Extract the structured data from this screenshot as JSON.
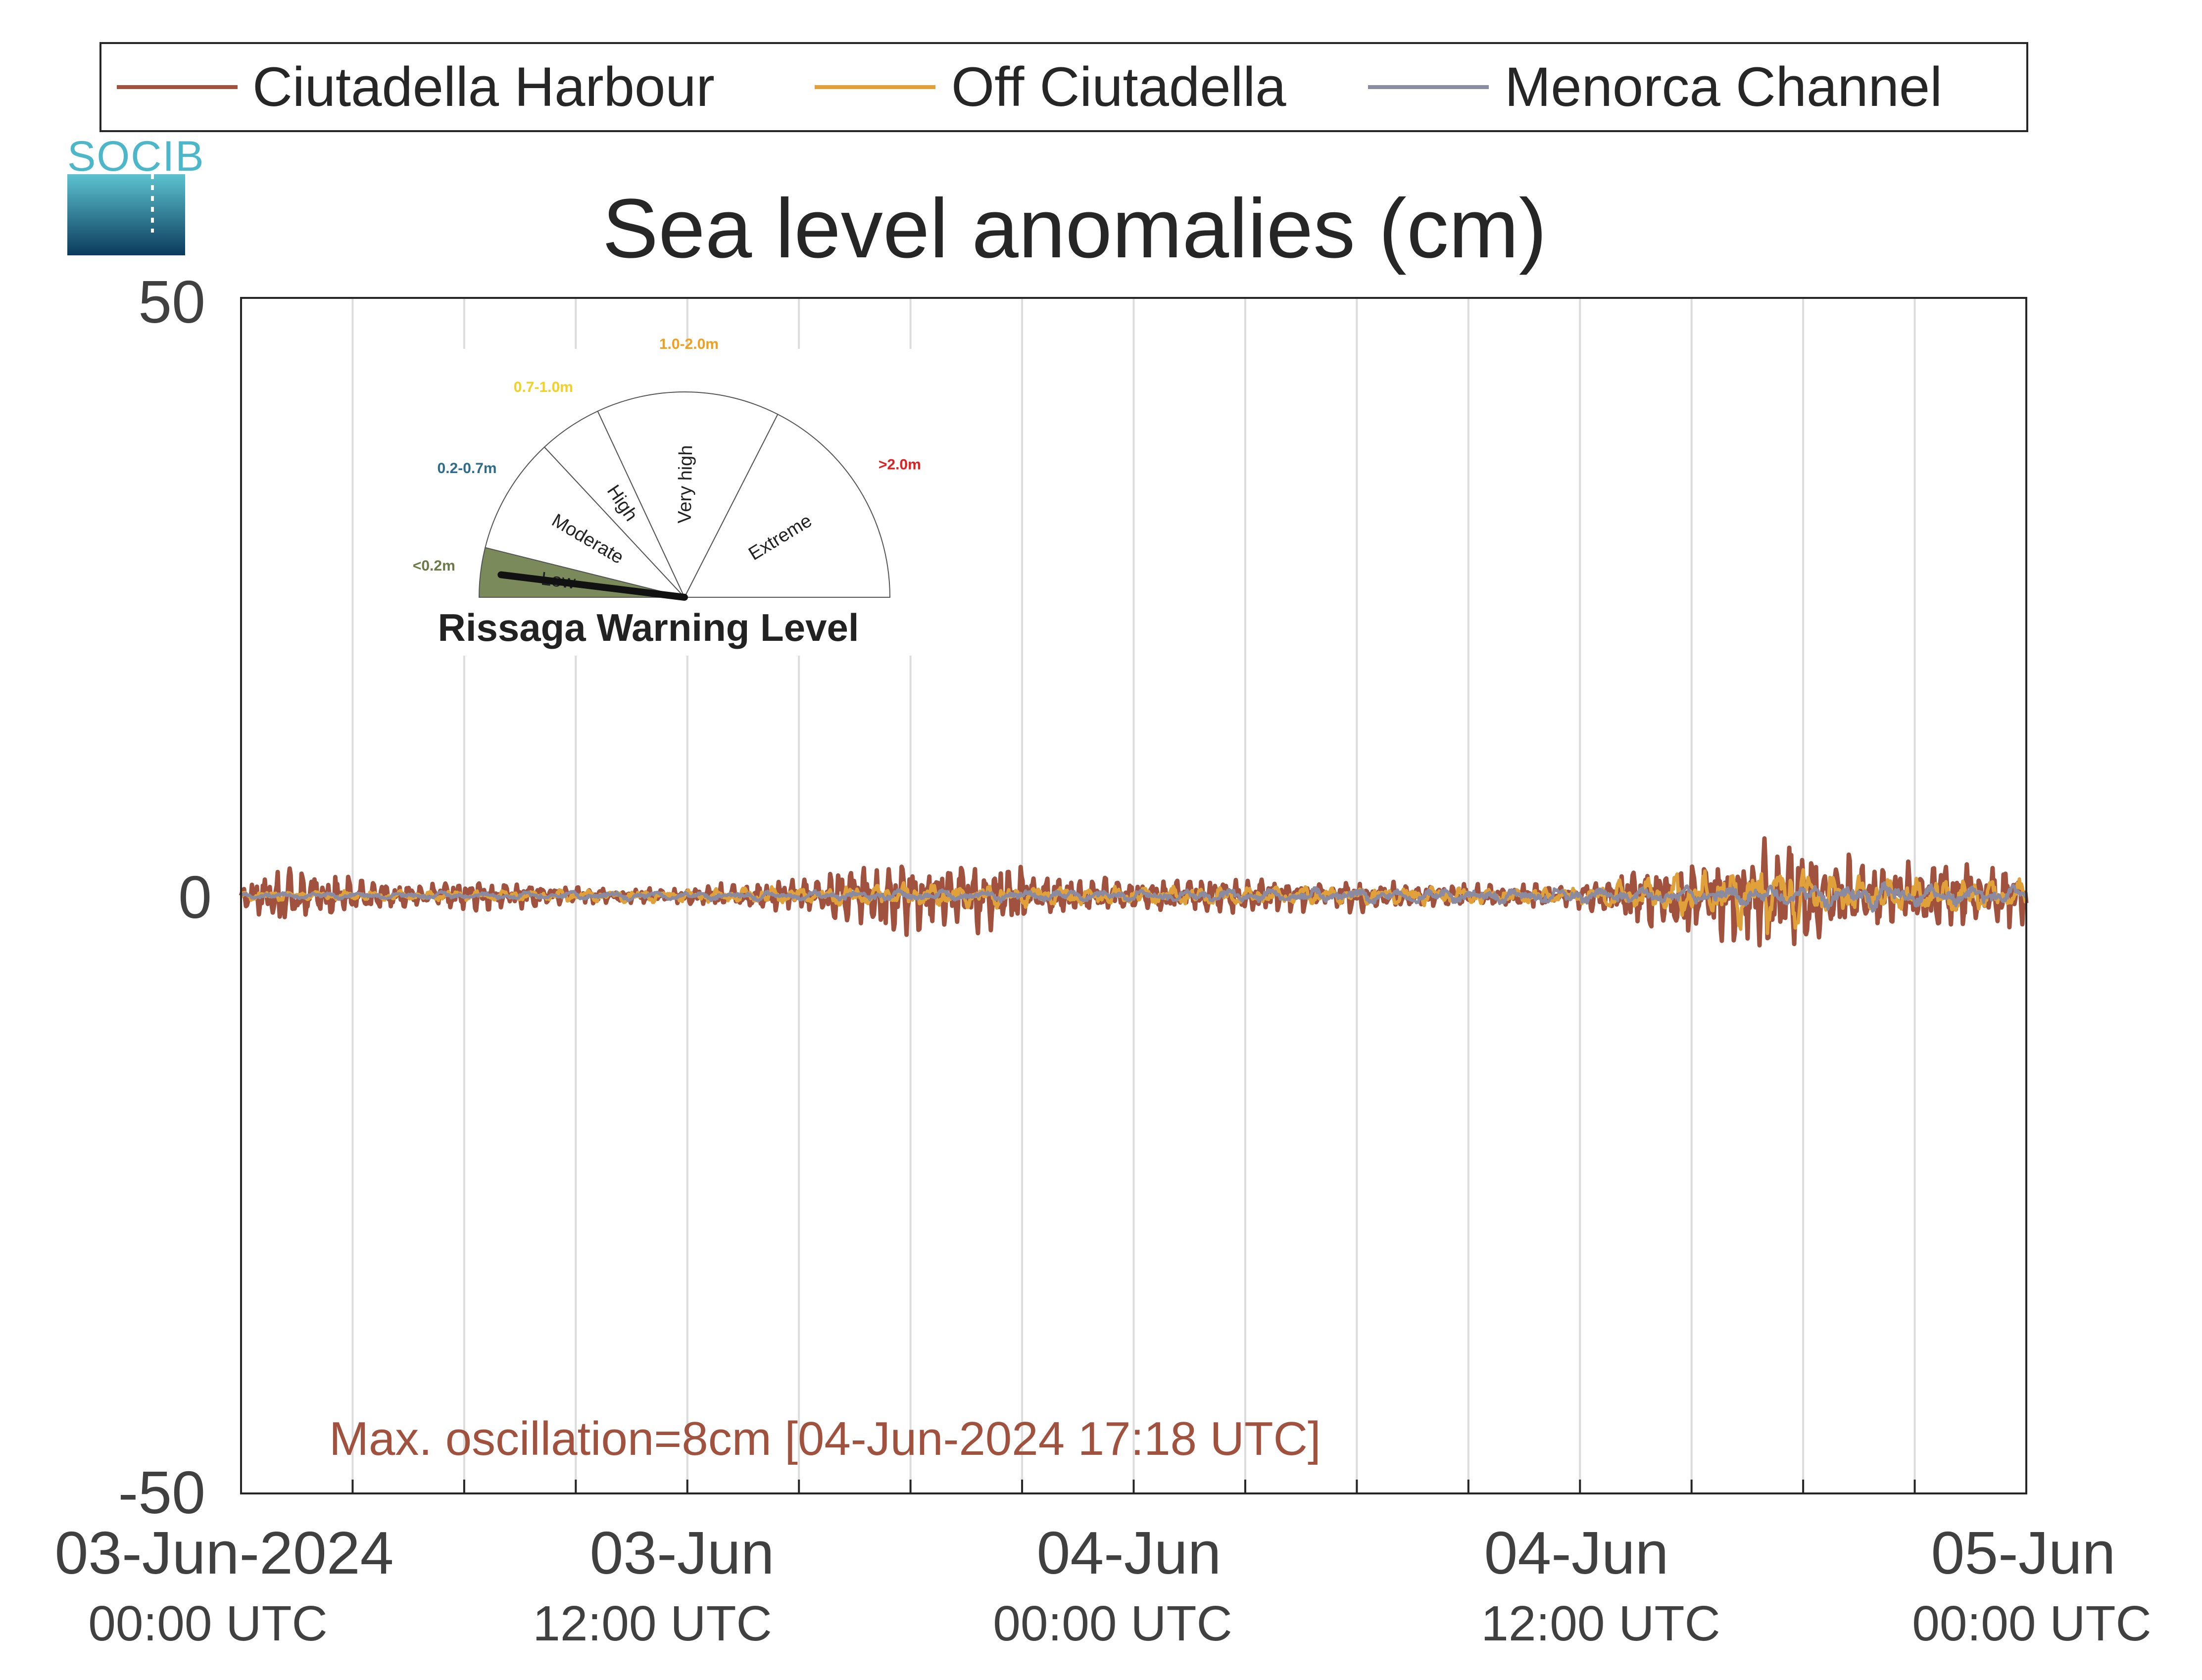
{
  "chart_data": {
    "type": "line",
    "title": "Sea level anomalies (cm)",
    "xlabel": "",
    "ylabel": "",
    "ylim": [
      -50,
      50
    ],
    "yticks": [
      "50",
      "0",
      "-50"
    ],
    "xlim_hours": [
      0,
      48
    ],
    "xtick_hours": [
      0,
      12,
      24,
      36,
      48
    ],
    "xtick_labels": [
      {
        "date": "03-Jun-2024",
        "time": "00:00 UTC"
      },
      {
        "date": "03-Jun",
        "time": "12:00 UTC"
      },
      {
        "date": "04-Jun",
        "time": "00:00 UTC"
      },
      {
        "date": "04-Jun",
        "time": "12:00 UTC"
      },
      {
        "date": "05-Jun",
        "time": "00:00 UTC"
      }
    ],
    "grid": "vertical, every 3 hours",
    "legend_position": "top",
    "series": [
      {
        "name": "Ciutadella Harbour",
        "color": "#a0523f",
        "amplitude_envelope": [
          {
            "hour": 0,
            "amp": 0.6
          },
          {
            "hour": 1,
            "amp": 2.0
          },
          {
            "hour": 2,
            "amp": 1.5
          },
          {
            "hour": 3,
            "amp": 1.2
          },
          {
            "hour": 5,
            "amp": 0.6
          },
          {
            "hour": 6,
            "amp": 1.0
          },
          {
            "hour": 8,
            "amp": 0.8
          },
          {
            "hour": 10,
            "amp": 0.5
          },
          {
            "hour": 12,
            "amp": 0.5
          },
          {
            "hour": 15,
            "amp": 1.2
          },
          {
            "hour": 16.5,
            "amp": 2.0
          },
          {
            "hour": 18,
            "amp": 2.4
          },
          {
            "hour": 21,
            "amp": 2.1
          },
          {
            "hour": 22,
            "amp": 1.2
          },
          {
            "hour": 24,
            "amp": 1.0
          },
          {
            "hour": 27,
            "amp": 1.2
          },
          {
            "hour": 30,
            "amp": 1.0
          },
          {
            "hour": 33,
            "amp": 0.7
          },
          {
            "hour": 36,
            "amp": 0.9
          },
          {
            "hour": 38,
            "amp": 2.3
          },
          {
            "hour": 40,
            "amp": 3.0
          },
          {
            "hour": 41.3,
            "amp": 4.0
          },
          {
            "hour": 42.5,
            "amp": 3.0
          },
          {
            "hour": 44,
            "amp": 2.4
          },
          {
            "hour": 46,
            "amp": 2.2
          },
          {
            "hour": 48,
            "amp": 2.0
          }
        ]
      },
      {
        "name": "Off Ciutadella",
        "color": "#e0a03a",
        "amplitude_envelope": [
          {
            "hour": 0,
            "amp": 0.3
          },
          {
            "hour": 12,
            "amp": 0.4
          },
          {
            "hour": 18,
            "amp": 0.8
          },
          {
            "hour": 24,
            "amp": 0.6
          },
          {
            "hour": 36,
            "amp": 0.6
          },
          {
            "hour": 41.3,
            "amp": 2.2
          },
          {
            "hour": 44,
            "amp": 1.2
          },
          {
            "hour": 48,
            "amp": 1.0
          }
        ]
      },
      {
        "name": "Menorca Channel",
        "color": "#8a8aa0",
        "amplitude_envelope": [
          {
            "hour": 0,
            "amp": 0.2
          },
          {
            "hour": 24,
            "amp": 0.4
          },
          {
            "hour": 40,
            "amp": 0.6
          },
          {
            "hour": 44,
            "amp": 0.9
          },
          {
            "hour": 48,
            "amp": 0.6
          }
        ]
      }
    ],
    "annotation": "Max. oscillation=8cm [04-Jun-2024 17:18 UTC]",
    "max_oscillation_cm": 8,
    "max_oscillation_time": "04-Jun-2024 17:18 UTC"
  },
  "legend": {
    "items": [
      {
        "label": "Ciutadella Harbour",
        "color": "#a0523f"
      },
      {
        "label": "Off Ciutadella",
        "color": "#e0a03a"
      },
      {
        "label": "Menorca Channel",
        "color": "#8a8aa0"
      }
    ]
  },
  "logo": {
    "text": "SOCIB"
  },
  "gauge": {
    "title": "Rissaga Warning Level",
    "current_level": "Low",
    "sectors": [
      {
        "label": "Low",
        "range": "<0.2m",
        "range_color": "#6b7a48"
      },
      {
        "label": "Moderate",
        "range": "0.2-0.7m",
        "range_color": "#2e6c8a"
      },
      {
        "label": "High",
        "range": "0.7-1.0m",
        "range_color": "#f2d024"
      },
      {
        "label": "Very high",
        "range": "1.0-2.0m",
        "range_color": "#f0a020"
      },
      {
        "label": "Extreme",
        "range": ">2.0m",
        "range_color": "#e02020"
      }
    ],
    "active_fill": "#7a8a5a"
  }
}
